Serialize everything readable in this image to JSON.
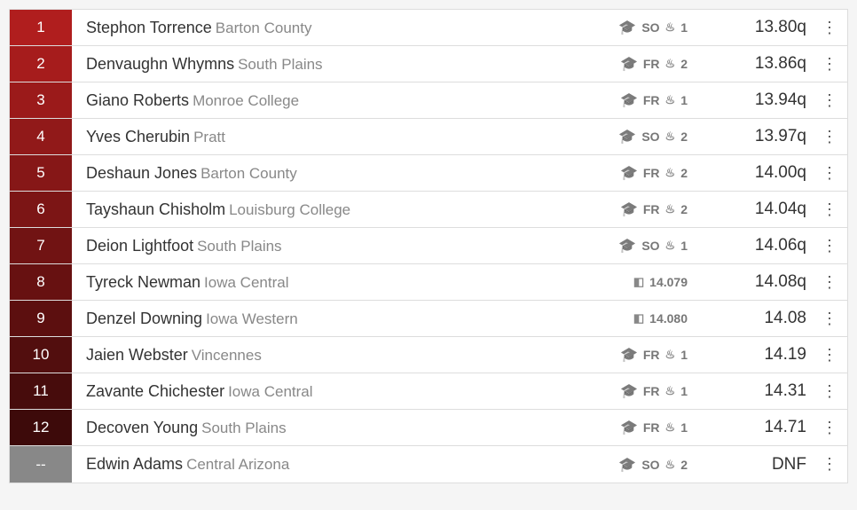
{
  "colors": {
    "place_gradient_start": "#b01e1e",
    "place_gradient_end": "#3d0a0a",
    "place_none_bg": "#888888"
  },
  "rows": [
    {
      "place": "1",
      "name": "Stephon Torrence",
      "team": "Barton County",
      "class": "SO",
      "heat": "1",
      "tie": null,
      "result": "13.80q"
    },
    {
      "place": "2",
      "name": "Denvaughn Whymns",
      "team": "South Plains",
      "class": "FR",
      "heat": "2",
      "tie": null,
      "result": "13.86q"
    },
    {
      "place": "3",
      "name": "Giano Roberts",
      "team": "Monroe College",
      "class": "FR",
      "heat": "1",
      "tie": null,
      "result": "13.94q"
    },
    {
      "place": "4",
      "name": "Yves Cherubin",
      "team": "Pratt",
      "class": "SO",
      "heat": "2",
      "tie": null,
      "result": "13.97q"
    },
    {
      "place": "5",
      "name": "Deshaun Jones",
      "team": "Barton County",
      "class": "FR",
      "heat": "2",
      "tie": null,
      "result": "14.00q"
    },
    {
      "place": "6",
      "name": "Tayshaun Chisholm",
      "team": "Louisburg College",
      "class": "FR",
      "heat": "2",
      "tie": null,
      "result": "14.04q"
    },
    {
      "place": "7",
      "name": "Deion Lightfoot",
      "team": "South Plains",
      "class": "SO",
      "heat": "1",
      "tie": null,
      "result": "14.06q"
    },
    {
      "place": "8",
      "name": "Tyreck Newman",
      "team": "Iowa Central",
      "class": null,
      "heat": null,
      "tie": "14.079",
      "result": "14.08q"
    },
    {
      "place": "9",
      "name": "Denzel Downing",
      "team": "Iowa Western",
      "class": null,
      "heat": null,
      "tie": "14.080",
      "result": "14.08"
    },
    {
      "place": "10",
      "name": "Jaien Webster",
      "team": "Vincennes",
      "class": "FR",
      "heat": "1",
      "tie": null,
      "result": "14.19"
    },
    {
      "place": "11",
      "name": "Zavante Chichester",
      "team": "Iowa Central",
      "class": "FR",
      "heat": "1",
      "tie": null,
      "result": "14.31"
    },
    {
      "place": "12",
      "name": "Decoven Young",
      "team": "South Plains",
      "class": "FR",
      "heat": "1",
      "tie": null,
      "result": "14.71"
    },
    {
      "place": "--",
      "name": "Edwin Adams",
      "team": "Central Arizona",
      "class": "SO",
      "heat": "2",
      "tie": null,
      "result": "DNF"
    }
  ]
}
